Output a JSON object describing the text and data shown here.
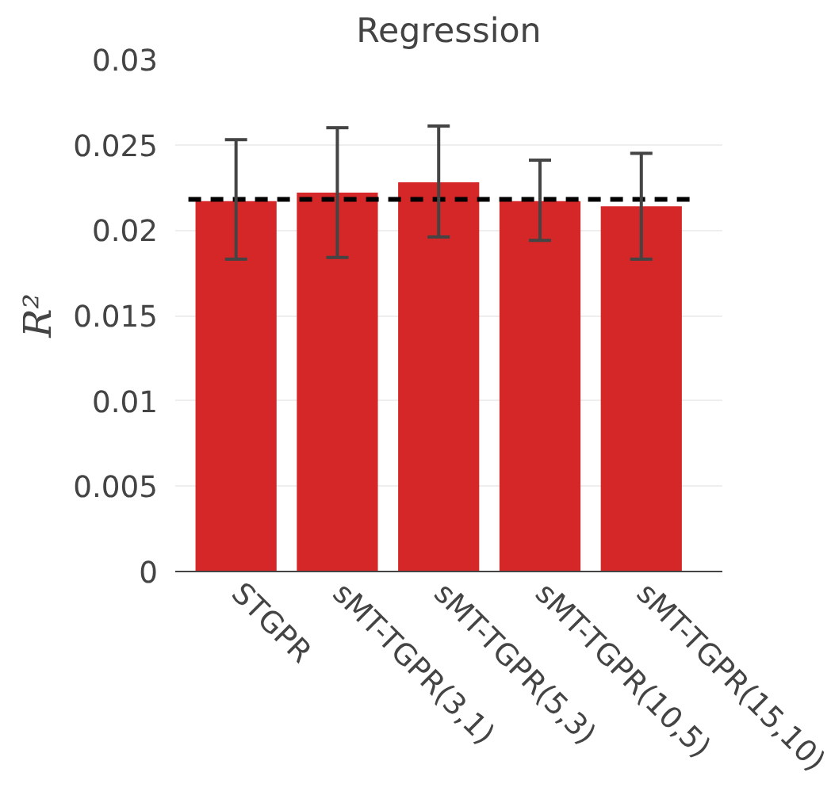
{
  "chart_data": {
    "type": "bar",
    "title": "Regression",
    "ylabel": "R²",
    "categories": [
      "STGPR",
      "sMT-TGPR(3,1)",
      "sMT-TGPR(5,3)",
      "sMT-TGPR(10,5)",
      "sMT-TGPR(15,10)"
    ],
    "values": [
      0.0217,
      0.0222,
      0.0228,
      0.0217,
      0.0214
    ],
    "errors": [
      [
        0.0183,
        0.0253
      ],
      [
        0.0184,
        0.026
      ],
      [
        0.0196,
        0.0261
      ],
      [
        0.0194,
        0.0241
      ],
      [
        0.0183,
        0.0245
      ]
    ],
    "color": "#d62728",
    "ylim": [
      0,
      0.03
    ],
    "yticks": [
      0,
      0.005,
      0.01,
      0.015,
      0.02,
      0.025,
      0.03
    ],
    "ref_lines": [
      {
        "axis": "y",
        "value": 0.0218,
        "label": null,
        "color": "#000000",
        "line_style": "dashed"
      }
    ],
    "grid": "y"
  }
}
